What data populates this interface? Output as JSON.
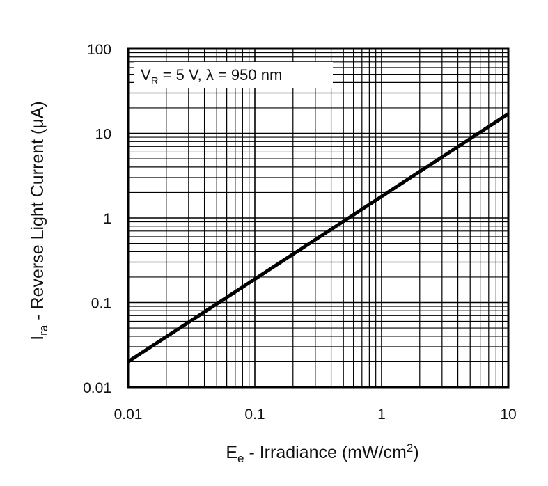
{
  "chart_data": {
    "type": "line",
    "scale": {
      "x": "log",
      "y": "log"
    },
    "grid": true,
    "xlim": [
      0.01,
      10
    ],
    "ylim": [
      0.01,
      100
    ],
    "xlabel": {
      "main": "E",
      "sub": "e",
      "rest": " - Irradiance (mW/cm",
      "sup": "2",
      "end": ")"
    },
    "ylabel": {
      "main": "I",
      "sub": "ra",
      "rest": " - Reverse Light Current (μA)"
    },
    "x_ticks": [
      {
        "value": 0.01,
        "label": "0.01"
      },
      {
        "value": 0.1,
        "label": "0.1"
      },
      {
        "value": 1,
        "label": "1"
      },
      {
        "value": 10,
        "label": "10"
      }
    ],
    "y_ticks": [
      {
        "value": 0.01,
        "label": "0.01"
      },
      {
        "value": 0.1,
        "label": "0.1"
      },
      {
        "value": 1,
        "label": "1"
      },
      {
        "value": 10,
        "label": "10"
      },
      {
        "value": 100,
        "label": "100"
      }
    ],
    "annotation": {
      "v": "V",
      "v_sub": "R",
      "rest": " = 5 V, λ = 950 nm"
    },
    "series": [
      {
        "x": [
          0.01,
          10
        ],
        "y": [
          0.02,
          17
        ]
      }
    ],
    "colors": {
      "line": "#000000",
      "grid": "#000000",
      "background": "#ffffff"
    }
  }
}
